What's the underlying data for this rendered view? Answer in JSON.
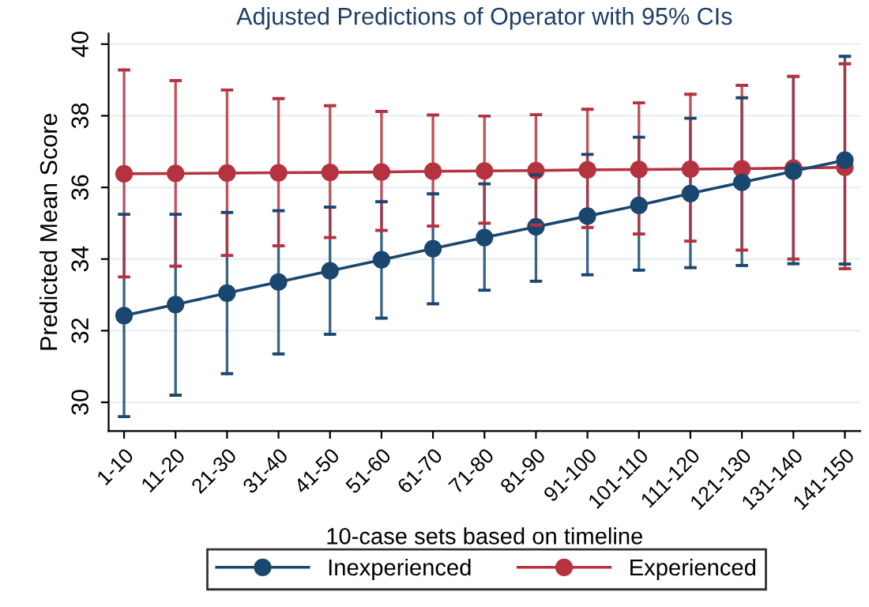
{
  "chart_data": {
    "type": "line",
    "title": "Adjusted Predictions of Operator with 95% CIs",
    "xlabel": "10-case sets based on timeline",
    "ylabel": "Predicted Mean Score",
    "categories": [
      "1-10",
      "11-20",
      "21-30",
      "31-40",
      "41-50",
      "51-60",
      "61-70",
      "71-80",
      "81-90",
      "91-100",
      "101-110",
      "111-120",
      "121-130",
      "131-140",
      "141-150"
    ],
    "series": [
      {
        "name": "Inexperienced",
        "color": "#1a476f",
        "values": [
          32.42,
          32.73,
          33.05,
          33.36,
          33.67,
          33.98,
          34.29,
          34.6,
          34.9,
          35.2,
          35.5,
          35.83,
          36.14,
          36.45,
          36.76
        ],
        "errors": [
          [
            29.6,
            35.25
          ],
          [
            30.2,
            35.25
          ],
          [
            30.8,
            35.3
          ],
          [
            31.35,
            35.35
          ],
          [
            31.9,
            35.45
          ],
          [
            32.35,
            35.6
          ],
          [
            32.75,
            35.82
          ],
          [
            33.13,
            36.1
          ],
          [
            33.38,
            36.35
          ],
          [
            33.56,
            36.92
          ],
          [
            33.69,
            37.4
          ],
          [
            33.76,
            37.93
          ],
          [
            33.82,
            38.5
          ],
          [
            33.87,
            39.1
          ],
          [
            33.86,
            39.66
          ]
        ]
      },
      {
        "name": "Experienced",
        "color": "#b5323f",
        "values": [
          36.38,
          36.39,
          36.4,
          36.41,
          36.42,
          36.43,
          36.45,
          36.46,
          36.47,
          36.49,
          36.5,
          36.51,
          36.52,
          36.54,
          36.56
        ],
        "errors": [
          [
            33.5,
            39.28
          ],
          [
            33.8,
            38.98
          ],
          [
            34.1,
            38.72
          ],
          [
            34.37,
            38.48
          ],
          [
            34.6,
            38.28
          ],
          [
            34.8,
            38.12
          ],
          [
            34.92,
            38.02
          ],
          [
            35.0,
            37.99
          ],
          [
            34.95,
            38.03
          ],
          [
            34.88,
            38.18
          ],
          [
            34.7,
            38.36
          ],
          [
            34.5,
            38.6
          ],
          [
            34.25,
            38.85
          ],
          [
            34.0,
            39.1
          ],
          [
            33.73,
            39.45
          ]
        ]
      }
    ],
    "ylim": [
      29.2,
      40.3
    ],
    "yticks": [
      30,
      32,
      34,
      36,
      38,
      40
    ],
    "grid": "y",
    "legend": "bottom",
    "marker": "circle",
    "line_style": "solid"
  }
}
